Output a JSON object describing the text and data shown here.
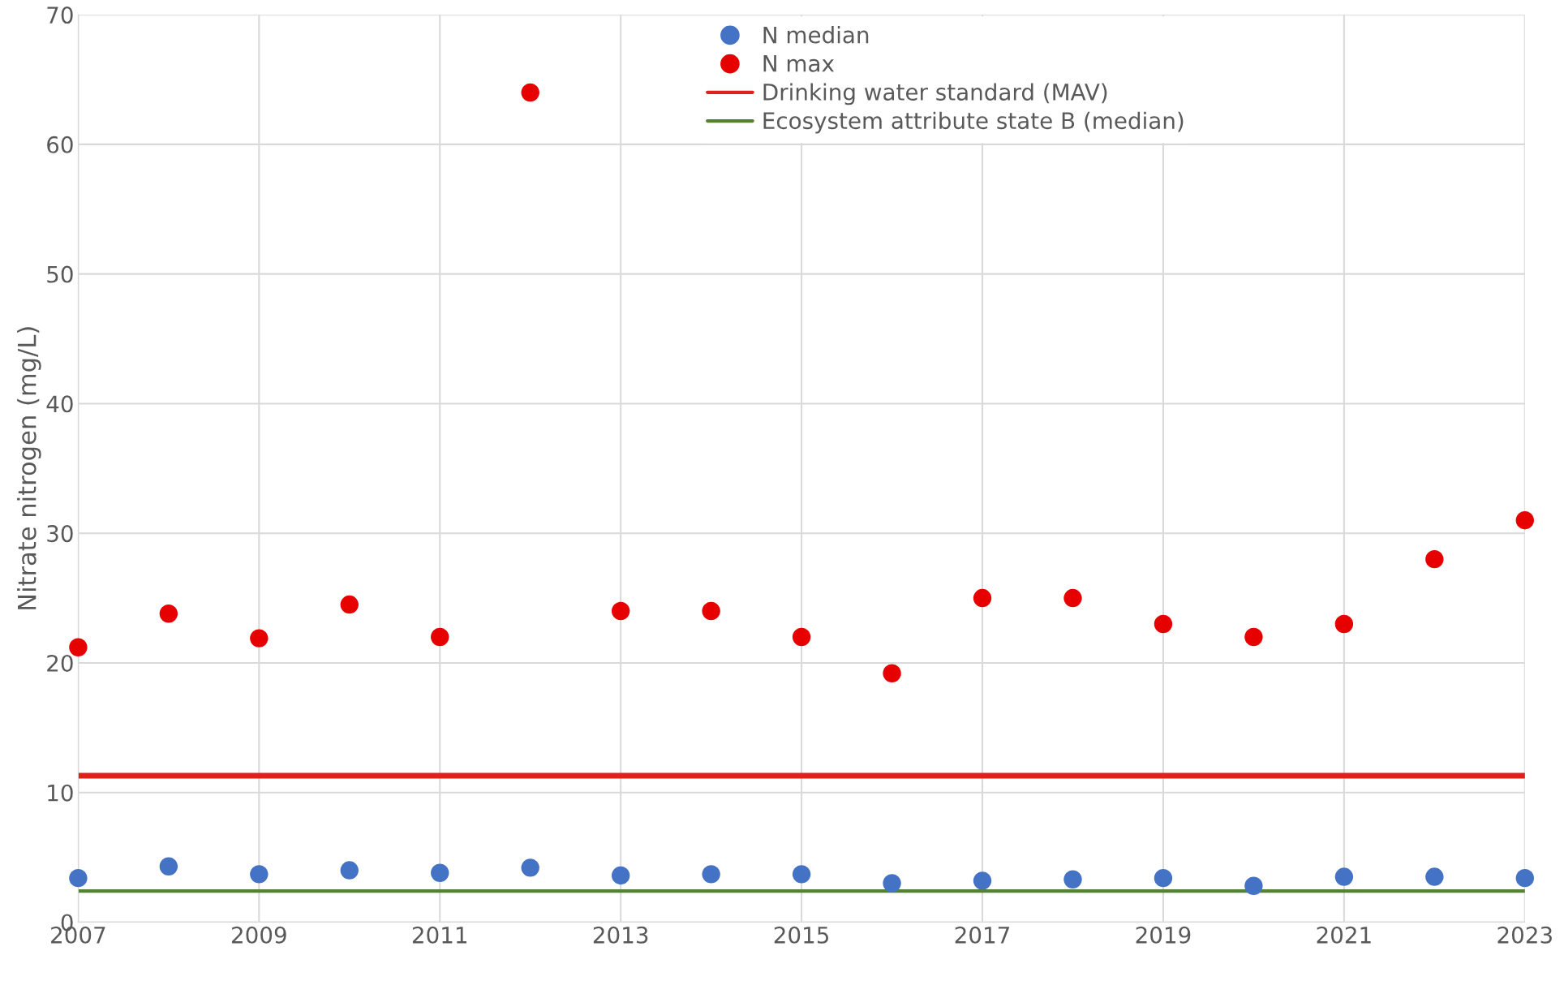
{
  "chart_data": {
    "type": "scatter",
    "ylabel": "Nitrate nitrogen (mg/L)",
    "x": [
      2007,
      2008,
      2009,
      2010,
      2011,
      2012,
      2013,
      2014,
      2015,
      2016,
      2017,
      2018,
      2019,
      2020,
      2021,
      2022,
      2023
    ],
    "series": [
      {
        "name": "N median",
        "color": "#4472c4",
        "values": [
          3.4,
          4.3,
          3.7,
          4.0,
          3.8,
          4.2,
          3.6,
          3.7,
          3.7,
          3.0,
          3.2,
          3.3,
          3.4,
          2.8,
          3.5,
          3.5,
          3.4
        ]
      },
      {
        "name": "N max",
        "color": "#e60000",
        "values": [
          21.2,
          23.8,
          21.9,
          24.5,
          22.0,
          64.0,
          24.0,
          24.0,
          22.0,
          19.2,
          25.0,
          25.0,
          23.0,
          22.0,
          23.0,
          28.0,
          31.0
        ]
      }
    ],
    "ref_lines": [
      {
        "axis": "y",
        "value": 11.3,
        "label": "Drinking water standard (MAV)",
        "color": "#e0201b",
        "line_style": "solid"
      },
      {
        "axis": "y",
        "value": 2.4,
        "label": "Ecosystem attribute state B (median)",
        "color": "#548235",
        "line_style": "solid"
      }
    ],
    "xlim": [
      2007,
      2023
    ],
    "xticks": [
      2007,
      2009,
      2011,
      2013,
      2015,
      2017,
      2019,
      2021,
      2023
    ],
    "ylim": [
      0,
      70
    ],
    "yticks": [
      0,
      10,
      20,
      30,
      40,
      50,
      60,
      70
    ],
    "grid": true,
    "legend": "top",
    "marker": "circle"
  }
}
